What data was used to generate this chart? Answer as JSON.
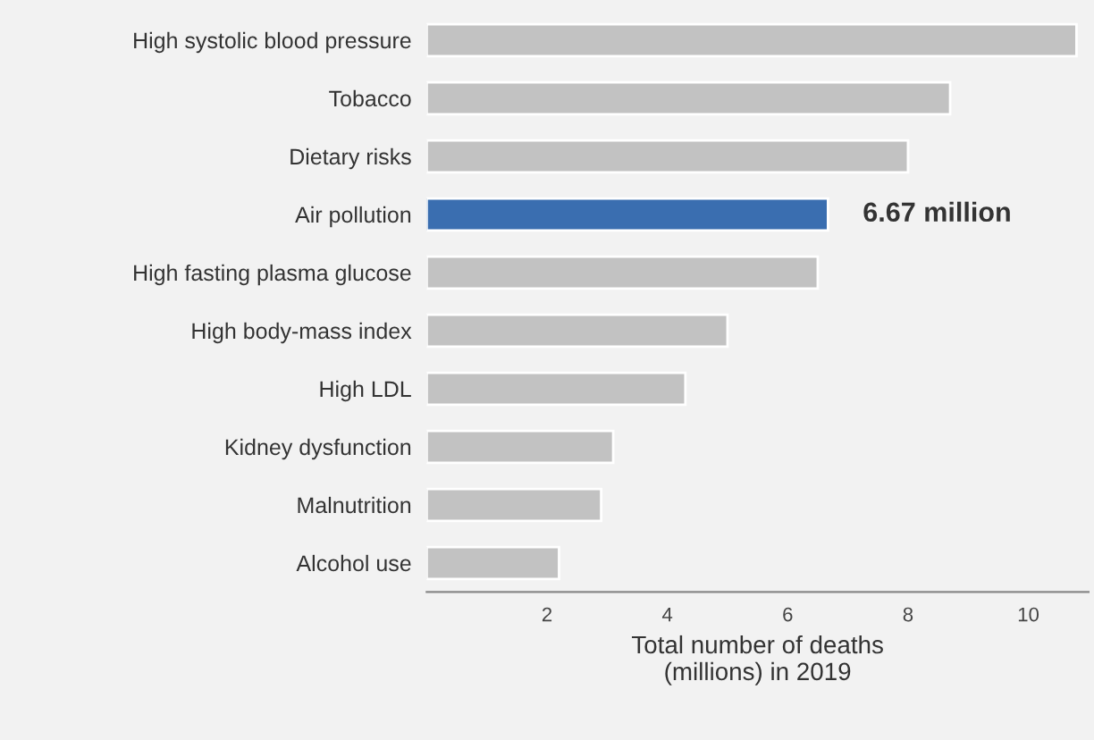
{
  "chart_data": {
    "type": "bar",
    "orientation": "horizontal",
    "categories": [
      "High systolic blood pressure",
      "Tobacco",
      "Dietary risks",
      "Air pollution",
      "High fasting plasma glucose",
      "High body-mass index",
      "High LDL",
      "Kidney dysfunction",
      "Malnutrition",
      "Alcohol use"
    ],
    "values": [
      10.8,
      8.7,
      8.0,
      6.67,
      6.5,
      5.0,
      4.3,
      3.1,
      2.9,
      2.2
    ],
    "colors": [
      "#c2c2c2",
      "#c2c2c2",
      "#c2c2c2",
      "#3a6eb0",
      "#c2c2c2",
      "#c2c2c2",
      "#c2c2c2",
      "#c2c2c2",
      "#c2c2c2",
      "#c2c2c2"
    ],
    "value_labels": [
      null,
      null,
      null,
      "6.67 million",
      null,
      null,
      null,
      null,
      null,
      null
    ],
    "xlabel": "Total number of deaths\n(millions) in 2019",
    "xlim": [
      0,
      11
    ],
    "xticks": [
      2,
      4,
      6,
      8,
      10
    ],
    "grid": false,
    "legend": false
  }
}
